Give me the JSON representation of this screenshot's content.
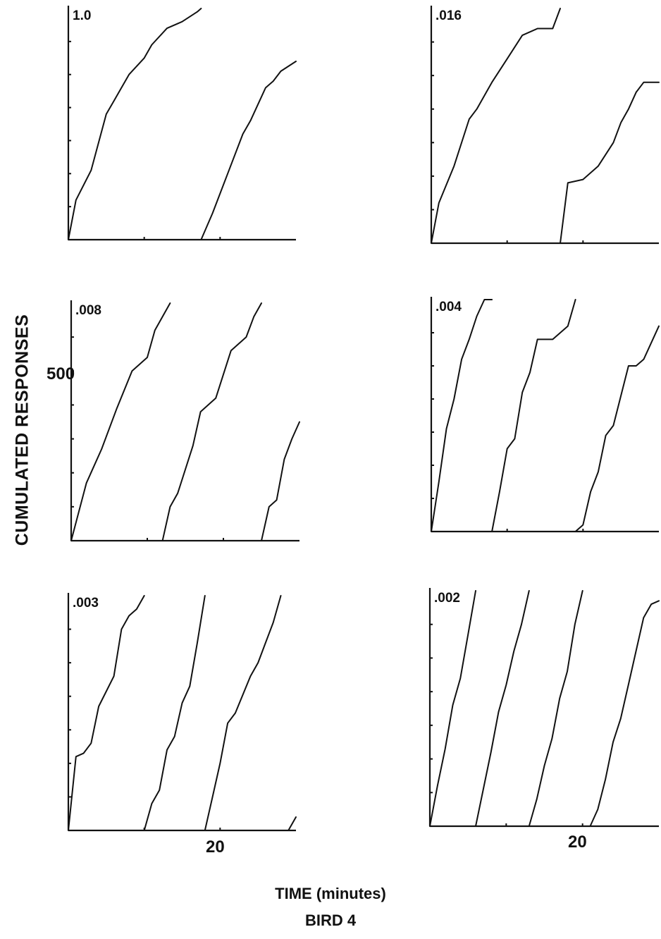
{
  "figure": {
    "ylabel": "CUMULATED RESPONSES",
    "ytick_label": "500",
    "xlabel": "TIME (minutes)",
    "xtick_label": "20",
    "footer": "BIRD 4"
  },
  "chart_data": [
    {
      "type": "line",
      "title": "1.0",
      "xlim": [
        0,
        30
      ],
      "ylim": [
        0,
        700
      ],
      "series": [
        {
          "x": [
            0,
            1,
            3,
            5,
            6,
            8,
            10,
            11,
            13,
            15,
            17,
            17.5
          ],
          "y": [
            0,
            120,
            210,
            380,
            420,
            500,
            550,
            590,
            640,
            660,
            690,
            700
          ]
        },
        {
          "x": [
            17.5,
            19,
            21,
            23,
            24,
            26,
            27,
            28,
            30
          ],
          "y": [
            0,
            80,
            200,
            320,
            360,
            460,
            480,
            510,
            540
          ]
        }
      ]
    },
    {
      "type": "line",
      "title": ".016",
      "xlim": [
        0,
        30
      ],
      "ylim": [
        0,
        700
      ],
      "series": [
        {
          "x": [
            0,
            1,
            3,
            5,
            6,
            8,
            10,
            12,
            14,
            16,
            17
          ],
          "y": [
            0,
            120,
            230,
            370,
            400,
            480,
            550,
            620,
            640,
            640,
            700
          ]
        },
        {
          "x": [
            17,
            18,
            20,
            22,
            24,
            25,
            26,
            27,
            28,
            30
          ],
          "y": [
            0,
            180,
            190,
            230,
            300,
            360,
            400,
            450,
            480,
            480
          ]
        }
      ]
    },
    {
      "type": "line",
      "title": ".008",
      "xlim": [
        0,
        30
      ],
      "ylim": [
        0,
        700
      ],
      "series": [
        {
          "x": [
            0,
            2,
            4,
            6,
            8,
            10,
            11,
            12,
            13
          ],
          "y": [
            0,
            170,
            270,
            390,
            500,
            540,
            620,
            660,
            700
          ]
        },
        {
          "x": [
            12,
            13,
            14,
            16,
            17,
            19,
            21,
            23,
            24,
            25
          ],
          "y": [
            0,
            100,
            140,
            280,
            380,
            420,
            560,
            600,
            660,
            700
          ]
        },
        {
          "x": [
            25,
            26,
            27,
            28,
            29,
            30
          ],
          "y": [
            0,
            100,
            120,
            240,
            300,
            350
          ]
        }
      ]
    },
    {
      "type": "line",
      "title": ".004",
      "xlim": [
        0,
        30
      ],
      "ylim": [
        0,
        700
      ],
      "series": [
        {
          "x": [
            0,
            1,
            2,
            3,
            4,
            5,
            6,
            7,
            8
          ],
          "y": [
            0,
            150,
            310,
            400,
            520,
            580,
            650,
            700,
            700
          ]
        },
        {
          "x": [
            8,
            9,
            10,
            11,
            12,
            13,
            14,
            16,
            18,
            19
          ],
          "y": [
            0,
            120,
            250,
            280,
            420,
            480,
            580,
            580,
            620,
            700
          ]
        },
        {
          "x": [
            19,
            20,
            21,
            22,
            23,
            24,
            26,
            27,
            28,
            30
          ],
          "y": [
            0,
            20,
            120,
            180,
            290,
            320,
            500,
            500,
            520,
            620
          ]
        }
      ]
    },
    {
      "type": "line",
      "title": ".003",
      "xlim": [
        0,
        30
      ],
      "ylim": [
        0,
        700
      ],
      "series": [
        {
          "x": [
            0,
            1,
            2,
            3,
            4,
            6,
            7,
            8,
            9,
            10
          ],
          "y": [
            0,
            220,
            230,
            260,
            370,
            460,
            600,
            640,
            660,
            700
          ]
        },
        {
          "x": [
            10,
            11,
            12,
            13,
            14,
            15,
            16,
            17,
            18
          ],
          "y": [
            0,
            80,
            120,
            240,
            280,
            380,
            430,
            560,
            700
          ]
        },
        {
          "x": [
            18,
            19,
            20,
            21,
            22,
            24,
            25,
            26,
            27,
            28
          ],
          "y": [
            0,
            100,
            200,
            320,
            350,
            460,
            500,
            560,
            620,
            700
          ]
        },
        {
          "x": [
            29,
            30
          ],
          "y": [
            0,
            40
          ]
        }
      ]
    },
    {
      "type": "line",
      "title": ".002",
      "xlim": [
        0,
        30
      ],
      "ylim": [
        0,
        700
      ],
      "series": [
        {
          "x": [
            0,
            1,
            2,
            3,
            4,
            5,
            6
          ],
          "y": [
            0,
            120,
            230,
            360,
            440,
            570,
            700
          ]
        },
        {
          "x": [
            6,
            8,
            9,
            10,
            11,
            12,
            13
          ],
          "y": [
            0,
            220,
            340,
            420,
            520,
            600,
            700
          ]
        },
        {
          "x": [
            13,
            14,
            15,
            16,
            17,
            18,
            19,
            20
          ],
          "y": [
            0,
            80,
            180,
            260,
            380,
            460,
            600,
            700
          ]
        },
        {
          "x": [
            21,
            22,
            23,
            24,
            25,
            26,
            27,
            28,
            29,
            30
          ],
          "y": [
            0,
            50,
            140,
            250,
            320,
            420,
            520,
            620,
            660,
            670
          ]
        }
      ]
    }
  ]
}
